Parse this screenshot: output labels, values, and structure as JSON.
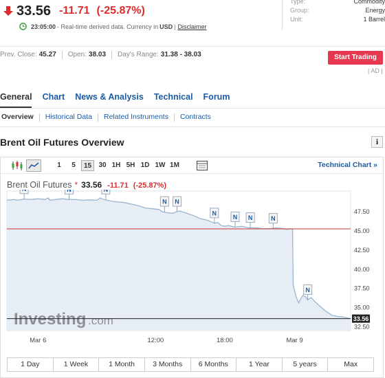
{
  "quote": {
    "price": "33.56",
    "change": "-11.71",
    "change_pct": "(-25.87%)",
    "time": "23:05:00",
    "realtime_text": "- Real-time derived data. Currency in",
    "currency": "USD",
    "disclaimer": "Disclaimer",
    "down_color": "#dc2c2c"
  },
  "instrument_info": [
    {
      "label": "Type:",
      "value": "Commodity"
    },
    {
      "label": "Group:",
      "value": "Energy"
    },
    {
      "label": "Unit:",
      "value": "1 Barrel"
    }
  ],
  "stats": {
    "prev_close_label": "Prev. Close:",
    "prev_close": "45.27",
    "open_label": "Open:",
    "open": "38.03",
    "range_label": "Day's Range:",
    "range": "31.38 - 38.03"
  },
  "start_trading": "Start Trading",
  "ad_label": "| AD |",
  "main_tabs": [
    "General",
    "Chart",
    "News & Analysis",
    "Technical",
    "Forum"
  ],
  "sub_tabs": [
    "Overview",
    "Historical Data",
    "Related Instruments",
    "Contracts"
  ],
  "overview_title": "Brent Oil Futures Overview",
  "info_button": "i",
  "toolbar": {
    "intervals": [
      "1",
      "5",
      "15",
      "30",
      "1H",
      "5H",
      "1D",
      "1W",
      "1M"
    ],
    "active_interval": "15",
    "technical_chart": "Technical Chart »"
  },
  "chart_header": {
    "name": "Brent Oil Futures",
    "star": "*",
    "price": "33.56",
    "change": "-11.71",
    "change_pct": "(-25.87%)"
  },
  "watermark": {
    "brand": "Investing",
    "suffix": ".com"
  },
  "chart_data": {
    "type": "area",
    "title": "",
    "xlabel": "",
    "ylabel": "",
    "x_tick_labels": [
      "Mar 6",
      "12:00",
      "18:00",
      "Mar 9"
    ],
    "y_ticks": [
      "47.50",
      "45.00",
      "42.50",
      "40.00",
      "37.50",
      "35.00",
      "32.50"
    ],
    "ylim": [
      32.0,
      50.2
    ],
    "x": [
      0,
      10,
      15,
      25,
      35,
      45,
      55,
      60,
      62,
      70,
      80,
      90,
      100,
      110,
      120,
      130,
      135,
      140,
      145,
      150,
      158,
      170,
      180,
      190,
      200,
      210,
      220,
      225,
      230,
      240,
      245,
      250,
      260,
      270,
      280,
      290,
      300,
      305,
      310,
      315,
      320,
      330,
      340,
      350,
      360,
      370,
      380,
      390,
      400,
      405,
      410,
      413,
      414,
      416,
      418,
      420,
      422,
      425,
      428,
      432,
      435,
      440,
      445,
      450,
      455,
      460,
      465,
      470,
      475,
      480,
      485,
      490,
      495,
      497
    ],
    "y": [
      49.0,
      49.1,
      49.0,
      49.15,
      49.1,
      49.2,
      49.1,
      49.3,
      49.0,
      49.1,
      49.2,
      49.1,
      49.1,
      49.0,
      49.05,
      49.0,
      49.3,
      49.1,
      49.0,
      48.9,
      48.8,
      48.7,
      48.5,
      48.3,
      48.0,
      47.9,
      47.8,
      47.5,
      47.4,
      47.3,
      47.5,
      47.6,
      47.3,
      47.0,
      46.6,
      46.4,
      46.0,
      46.1,
      45.7,
      45.6,
      45.7,
      45.5,
      45.6,
      45.4,
      45.4,
      45.3,
      45.3,
      45.4,
      45.3,
      45.2,
      45.3,
      45.2,
      38.0,
      37.2,
      36.5,
      36.0,
      35.6,
      36.2,
      36.6,
      36.4,
      36.0,
      36.3,
      35.8,
      35.4,
      35.0,
      34.6,
      34.3,
      34.0,
      33.9,
      33.8,
      33.8,
      33.7,
      33.6,
      33.56
    ],
    "x_axis_span": [
      0,
      497
    ],
    "x_tick_positions": [
      45,
      215,
      315,
      416
    ],
    "reference_line": {
      "value": 45.27,
      "label": "Prev. Close",
      "color": "#cc3333"
    },
    "last_value": 33.56,
    "last_value_label": "33.56",
    "news_markers_x": [
      25,
      90,
      143,
      228,
      246,
      300,
      330,
      352,
      385,
      435
    ],
    "line_color": "#9ab5cf",
    "fill_color": "#e6edf5",
    "grid": false
  },
  "range_buttons": [
    "1 Day",
    "1 Week",
    "1 Month",
    "3 Months",
    "6 Months",
    "1 Year",
    "5 years",
    "Max"
  ]
}
